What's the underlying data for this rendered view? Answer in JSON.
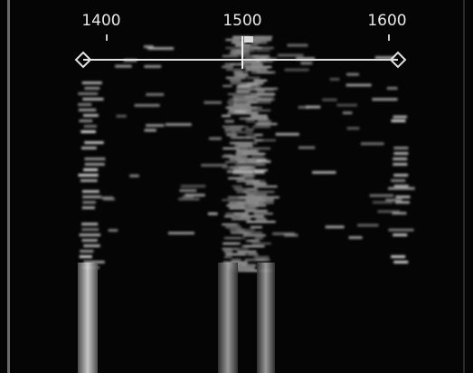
{
  "scale": {
    "labels": [
      "1400",
      "1500",
      "1600"
    ]
  }
}
